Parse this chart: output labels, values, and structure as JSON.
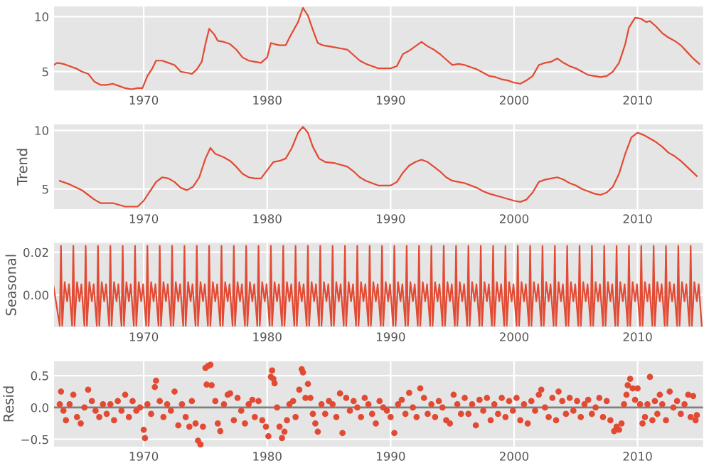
{
  "chart_data": [
    {
      "type": "line",
      "xlim": [
        1962.66,
        2015.38
      ],
      "xticks": [
        1970,
        1980,
        1990,
        2000,
        2010
      ],
      "ylim": [
        3.2,
        11.0
      ],
      "yticks": [
        5,
        10
      ],
      "grid": true,
      "series": [
        {
          "color": "#e24a33",
          "x": [
            1962.7,
            1963.0,
            1963.5,
            1964.0,
            1964.5,
            1965.0,
            1965.5,
            1966.0,
            1966.5,
            1967.0,
            1967.5,
            1968.0,
            1968.5,
            1969.0,
            1969.5,
            1969.9,
            1970.3,
            1970.7,
            1971.0,
            1971.5,
            1972.0,
            1972.5,
            1973.0,
            1973.5,
            1973.9,
            1974.3,
            1974.7,
            1975.0,
            1975.3,
            1975.7,
            1976.0,
            1976.5,
            1977.0,
            1977.5,
            1978.0,
            1978.5,
            1979.0,
            1979.5,
            1980.0,
            1980.3,
            1980.6,
            1981.0,
            1981.5,
            1981.9,
            1982.5,
            1982.9,
            1983.3,
            1983.7,
            1984.1,
            1984.5,
            1985.0,
            1985.5,
            1986.0,
            1986.5,
            1987.0,
            1987.5,
            1988.0,
            1988.5,
            1989.0,
            1989.5,
            1990.0,
            1990.5,
            1991.0,
            1991.5,
            1992.0,
            1992.5,
            1993.0,
            1993.5,
            1994.0,
            1994.5,
            1995.0,
            1995.5,
            1996.0,
            1996.5,
            1997.0,
            1997.5,
            1998.0,
            1998.5,
            1999.0,
            1999.5,
            2000.0,
            2000.5,
            2001.0,
            2001.5,
            2002.0,
            2002.5,
            2003.0,
            2003.5,
            2004.0,
            2004.5,
            2005.0,
            2005.5,
            2006.0,
            2006.5,
            2007.0,
            2007.5,
            2008.0,
            2008.5,
            2009.0,
            2009.3,
            2009.8,
            2010.3,
            2010.7,
            2011.0,
            2011.5,
            2012.0,
            2012.5,
            2013.0,
            2013.5,
            2014.0,
            2014.5,
            2015.0
          ],
          "values": [
            5.6,
            5.8,
            5.7,
            5.5,
            5.3,
            5.0,
            4.8,
            4.1,
            3.8,
            3.8,
            3.9,
            3.7,
            3.5,
            3.4,
            3.5,
            3.5,
            4.6,
            5.3,
            6.0,
            6.0,
            5.8,
            5.6,
            5.0,
            4.9,
            4.8,
            5.2,
            5.9,
            7.5,
            8.9,
            8.4,
            7.8,
            7.7,
            7.5,
            7.0,
            6.3,
            6.0,
            5.9,
            5.8,
            6.3,
            7.6,
            7.5,
            7.4,
            7.4,
            8.3,
            9.5,
            10.8,
            10.1,
            8.8,
            7.6,
            7.4,
            7.3,
            7.2,
            7.1,
            7.0,
            6.5,
            6.0,
            5.7,
            5.5,
            5.3,
            5.3,
            5.3,
            5.5,
            6.6,
            6.9,
            7.3,
            7.7,
            7.3,
            7.0,
            6.6,
            6.1,
            5.6,
            5.7,
            5.6,
            5.4,
            5.2,
            4.9,
            4.6,
            4.5,
            4.3,
            4.2,
            4.0,
            3.9,
            4.2,
            4.6,
            5.6,
            5.8,
            5.9,
            6.2,
            5.8,
            5.5,
            5.3,
            5.0,
            4.7,
            4.6,
            4.5,
            4.6,
            5.0,
            5.8,
            7.5,
            9.0,
            9.9,
            9.8,
            9.5,
            9.6,
            9.1,
            8.5,
            8.1,
            7.8,
            7.4,
            6.8,
            6.2,
            5.7
          ]
        }
      ]
    },
    {
      "type": "line",
      "ylabel": "Trend",
      "xlim": [
        1962.66,
        2015.38
      ],
      "xticks": [
        1970,
        1980,
        1990,
        2000,
        2010
      ],
      "ylim": [
        3.2,
        10.6
      ],
      "yticks": [
        5,
        10
      ],
      "grid": true,
      "series": [
        {
          "color": "#e24a33",
          "x": [
            1963.2,
            1964.0,
            1965.0,
            1965.5,
            1966.0,
            1966.5,
            1967.5,
            1968.5,
            1969.5,
            1970.0,
            1970.5,
            1971.0,
            1971.5,
            1972.0,
            1972.5,
            1973.0,
            1973.5,
            1974.0,
            1974.5,
            1975.0,
            1975.4,
            1975.8,
            1976.5,
            1977.0,
            1977.5,
            1978.0,
            1978.5,
            1979.0,
            1979.5,
            1980.0,
            1980.5,
            1981.0,
            1981.5,
            1982.0,
            1982.5,
            1982.9,
            1983.3,
            1983.7,
            1984.2,
            1984.7,
            1985.5,
            1986.5,
            1987.0,
            1987.5,
            1988.0,
            1988.5,
            1989.0,
            1990.0,
            1990.5,
            1991.0,
            1991.5,
            1992.0,
            1992.5,
            1993.0,
            1993.5,
            1994.0,
            1994.5,
            1995.0,
            1996.0,
            1997.0,
            1997.5,
            1998.0,
            1999.0,
            2000.0,
            2000.5,
            2001.0,
            2001.5,
            2002.0,
            2002.5,
            2003.0,
            2003.5,
            2004.0,
            2004.5,
            2005.0,
            2005.5,
            2006.0,
            2006.5,
            2007.0,
            2007.5,
            2008.0,
            2008.5,
            2009.0,
            2009.5,
            2010.0,
            2010.5,
            2011.0,
            2011.5,
            2012.0,
            2012.5,
            2013.0,
            2013.5,
            2014.0,
            2014.5,
            2014.8
          ],
          "values": [
            5.7,
            5.4,
            4.9,
            4.5,
            4.1,
            3.8,
            3.8,
            3.5,
            3.5,
            4.0,
            4.8,
            5.6,
            6.0,
            5.9,
            5.6,
            5.1,
            4.9,
            5.2,
            6.0,
            7.6,
            8.5,
            8.0,
            7.7,
            7.4,
            6.9,
            6.3,
            6.0,
            5.9,
            5.9,
            6.6,
            7.3,
            7.4,
            7.6,
            8.5,
            9.8,
            10.3,
            9.8,
            8.6,
            7.6,
            7.3,
            7.2,
            6.9,
            6.5,
            6.0,
            5.7,
            5.5,
            5.3,
            5.3,
            5.6,
            6.4,
            7.0,
            7.3,
            7.5,
            7.3,
            6.9,
            6.5,
            6.0,
            5.7,
            5.5,
            5.1,
            4.8,
            4.6,
            4.3,
            4.0,
            3.9,
            4.1,
            4.7,
            5.6,
            5.8,
            5.9,
            6.0,
            5.8,
            5.5,
            5.3,
            5.0,
            4.8,
            4.6,
            4.5,
            4.7,
            5.2,
            6.3,
            8.0,
            9.4,
            9.8,
            9.6,
            9.3,
            9.0,
            8.6,
            8.1,
            7.8,
            7.4,
            6.9,
            6.4,
            6.1
          ]
        }
      ]
    },
    {
      "type": "line",
      "ylabel": "Seasonal",
      "xlim": [
        1962.66,
        2015.38
      ],
      "xticks": [
        1970,
        1980,
        1990,
        2000,
        2010
      ],
      "ylim": [
        -0.0156,
        0.0249
      ],
      "yticks": [
        {
          "value": 0.0,
          "label": "0.00"
        },
        {
          "value": 0.02,
          "label": "0.02"
        }
      ],
      "grid": true,
      "series": [
        {
          "color": "#e24a33",
          "x": [
            1962.7,
            1963.2,
            1963.3,
            1963.4,
            1963.6,
            1963.8,
            1963.95,
            1964.2,
            1964.3,
            1964.4,
            1964.6,
            1964.8,
            1964.95,
            1965.2,
            1965.3,
            1965.4,
            1965.6,
            1965.8,
            1965.95,
            1966.2,
            1966.3,
            1966.4,
            1966.6,
            1966.8,
            1966.95,
            1967.2,
            1967.3,
            1967.4,
            1967.6,
            1967.8,
            1967.95,
            1968.2,
            1968.3,
            1968.4,
            1968.6,
            1968.8,
            1968.95,
            1969.2,
            1969.3,
            1969.4,
            1969.6,
            1969.8,
            1969.95,
            1970.2,
            1970.3,
            1970.4,
            1970.6,
            1970.8,
            1970.95,
            1971.2,
            1971.3,
            1971.4,
            1971.6,
            1971.8,
            1971.95,
            1972.2,
            1972.3,
            1972.4,
            1972.6,
            1972.8,
            1972.95,
            1973.2,
            1973.3,
            1973.4,
            1973.6,
            1973.8,
            1973.95,
            1974.2,
            1974.3,
            1974.4,
            1974.6,
            1974.8,
            1974.95,
            1975.2,
            1975.3,
            1975.4,
            1975.6,
            1975.8,
            1975.95,
            1976.2,
            1976.3,
            1976.4,
            1976.6,
            1976.8,
            1976.95,
            1977.2,
            1977.3,
            1977.4,
            1977.6,
            1977.8,
            1977.95,
            1978.2,
            1978.3,
            1978.4,
            1978.6,
            1978.8,
            1978.95,
            1979.2,
            1979.3,
            1979.4,
            1979.6,
            1979.8,
            1979.95,
            1980.2,
            1980.3,
            1980.4,
            1980.6,
            1980.8,
            1980.95,
            1981.2,
            1981.3,
            1981.4,
            1981.6,
            1981.8,
            1981.95,
            1982.2,
            1982.3,
            1982.4,
            1982.6,
            1982.8,
            1982.95,
            1983.2,
            1983.3,
            1983.4,
            1983.6,
            1983.8,
            1983.95,
            1984.2,
            1984.3,
            1984.4,
            1984.6,
            1984.8,
            1984.95,
            1985.2,
            1985.3,
            1985.4,
            1985.6,
            1985.8,
            1985.95,
            1986.2,
            1986.3,
            1986.4,
            1986.6,
            1986.8,
            1986.95,
            1987.2,
            1987.3,
            1987.4,
            1987.6,
            1987.8,
            1987.95,
            1988.2,
            1988.3,
            1988.4,
            1988.6,
            1988.8,
            1988.95,
            1989.2,
            1989.3,
            1989.4,
            1989.6,
            1989.8,
            1989.95,
            1990.2,
            1990.3,
            1990.4,
            1990.6,
            1990.8,
            1990.95,
            1991.2,
            1991.3,
            1991.4,
            1991.6,
            1991.8,
            1991.95,
            1992.2,
            1992.3,
            1992.4,
            1992.6,
            1992.8,
            1992.95,
            1993.2,
            1993.3,
            1993.4,
            1993.6,
            1993.8,
            1993.95,
            1994.2,
            1994.3,
            1994.4,
            1994.6,
            1994.8,
            1994.95,
            1995.2,
            1995.3,
            1995.4,
            1995.6,
            1995.8,
            1995.95,
            1996.2,
            1996.3,
            1996.4,
            1996.6,
            1996.8,
            1996.95,
            1997.2,
            1997.3,
            1997.4,
            1997.6,
            1997.8,
            1997.95,
            1998.2,
            1998.3,
            1998.4,
            1998.6,
            1998.8,
            1998.95,
            1999.2,
            1999.3,
            1999.4,
            1999.6,
            1999.8,
            1999.95,
            2000.2,
            2000.3,
            2000.4,
            2000.6,
            2000.8,
            2000.95,
            2001.2,
            2001.3,
            2001.4,
            2001.6,
            2001.8,
            2001.95,
            2002.2,
            2002.3,
            2002.4,
            2002.6,
            2002.8,
            2002.95,
            2003.2,
            2003.3,
            2003.4,
            2003.6,
            2003.8,
            2003.95,
            2004.2,
            2004.3,
            2004.4,
            2004.6,
            2004.8,
            2004.95,
            2005.2,
            2005.3,
            2005.4,
            2005.6,
            2005.8,
            2005.95,
            2006.2,
            2006.3,
            2006.4,
            2006.6,
            2006.8,
            2006.95,
            2007.2,
            2007.3,
            2007.4,
            2007.6,
            2007.8,
            2007.95,
            2008.2,
            2008.3,
            2008.4,
            2008.6,
            2008.8,
            2008.95,
            2009.2,
            2009.3,
            2009.4,
            2009.6,
            2009.8,
            2009.95,
            2010.2,
            2010.3,
            2010.4,
            2010.6,
            2010.8,
            2010.95,
            2011.2,
            2011.3,
            2011.4,
            2011.6,
            2011.8,
            2011.95,
            2012.2,
            2012.3,
            2012.4,
            2012.6,
            2012.8,
            2012.95,
            2013.2,
            2013.3,
            2013.4,
            2013.6,
            2013.8,
            2013.95,
            2014.2,
            2014.3,
            2014.4,
            2014.6,
            2014.8,
            2014.95,
            2015.2
          ],
          "values": [
            0.004,
            -0.0145,
            0.023,
            -0.0145,
            0.006,
            -0.003,
            0.005,
            -0.0145,
            0.023,
            -0.0145,
            0.006,
            -0.003,
            0.005,
            -0.0145,
            0.023,
            -0.0145,
            0.006,
            -0.003,
            0.005,
            -0.0145,
            0.023,
            -0.0145,
            0.006,
            -0.003,
            0.005,
            -0.0145,
            0.023,
            -0.0145,
            0.006,
            -0.003,
            0.005,
            -0.0145,
            0.023,
            -0.0145,
            0.006,
            -0.003,
            0.005,
            -0.0145,
            0.023,
            -0.0145,
            0.006,
            -0.003,
            0.005,
            -0.0145,
            0.023,
            -0.0145,
            0.006,
            -0.003,
            0.005,
            -0.0145,
            0.023,
            -0.0145,
            0.006,
            -0.003,
            0.005,
            -0.0145,
            0.023,
            -0.0145,
            0.006,
            -0.003,
            0.005,
            -0.0145,
            0.023,
            -0.0145,
            0.006,
            -0.003,
            0.005,
            -0.0145,
            0.023,
            -0.0145,
            0.006,
            -0.003,
            0.005,
            -0.0145,
            0.023,
            -0.0145,
            0.006,
            -0.003,
            0.005,
            -0.0145,
            0.023,
            -0.0145,
            0.006,
            -0.003,
            0.005,
            -0.0145,
            0.023,
            -0.0145,
            0.006,
            -0.003,
            0.005,
            -0.0145,
            0.023,
            -0.0145,
            0.006,
            -0.003,
            0.005,
            -0.0145,
            0.023,
            -0.0145,
            0.006,
            -0.003,
            0.005,
            -0.0145,
            0.023,
            -0.0145,
            0.006,
            -0.003,
            0.005,
            -0.0145,
            0.023,
            -0.0145,
            0.006,
            -0.003,
            0.005,
            -0.0145,
            0.023,
            -0.0145,
            0.006,
            -0.003,
            0.005,
            -0.0145,
            0.023,
            -0.0145,
            0.006,
            -0.003,
            0.005,
            -0.0145,
            0.023,
            -0.0145,
            0.006,
            -0.003,
            0.005,
            -0.0145,
            0.023,
            -0.0145,
            0.006,
            -0.003,
            0.005,
            -0.0145,
            0.023,
            -0.0145,
            0.006,
            -0.003,
            0.005,
            -0.0145,
            0.023,
            -0.0145,
            0.006,
            -0.003,
            0.005,
            -0.0145,
            0.023,
            -0.0145,
            0.006,
            -0.003,
            0.005,
            -0.0145,
            0.023,
            -0.0145,
            0.006,
            -0.003,
            0.005,
            -0.0145,
            0.023,
            -0.0145,
            0.006,
            -0.003,
            0.005,
            -0.0145,
            0.023,
            -0.0145,
            0.006,
            -0.003,
            0.005,
            -0.0145,
            0.023,
            -0.0145,
            0.006,
            -0.003,
            0.005,
            -0.0145,
            0.023,
            -0.0145,
            0.006,
            -0.003,
            0.005,
            -0.0145,
            0.023,
            -0.0145,
            0.006,
            -0.003,
            0.005,
            -0.0145,
            0.023,
            -0.0145,
            0.006,
            -0.003,
            0.005,
            -0.0145,
            0.023,
            -0.0145,
            0.006,
            -0.003,
            0.005,
            -0.0145,
            0.023,
            -0.0145,
            0.006,
            -0.003,
            0.005,
            -0.0145,
            0.023,
            -0.0145,
            0.006,
            -0.003,
            0.005,
            -0.0145,
            0.023,
            -0.0145,
            0.006,
            -0.003,
            0.005,
            -0.0145,
            0.023,
            -0.0145,
            0.006,
            -0.003,
            0.005,
            -0.0145,
            0.023,
            -0.0145,
            0.006,
            -0.003,
            0.005,
            -0.0145,
            0.023,
            -0.0145,
            0.006,
            -0.003,
            0.005,
            -0.0145,
            0.023,
            -0.0145,
            0.006,
            -0.003,
            0.005,
            -0.0145,
            0.023,
            -0.0145,
            0.006,
            -0.003,
            0.005,
            -0.0145,
            0.023,
            -0.0145,
            0.006,
            -0.003,
            0.005,
            -0.0145,
            0.023,
            -0.0145,
            0.006,
            -0.003,
            0.005,
            -0.0145,
            0.023,
            -0.0145,
            0.006,
            -0.003,
            0.005,
            -0.0145,
            0.023,
            -0.0145,
            0.006,
            -0.003,
            0.005,
            -0.0145,
            0.023,
            -0.0145,
            0.006,
            -0.003,
            0.005,
            -0.0145,
            0.023,
            -0.0145,
            0.006,
            -0.003,
            0.005,
            -0.0145,
            0.023,
            -0.0145,
            0.006,
            -0.003,
            0.005,
            -0.0145,
            0.023,
            -0.0145,
            0.006,
            -0.003,
            0.005,
            -0.0145,
            0.023,
            -0.0145,
            0.006,
            -0.003,
            0.005,
            -0.0145,
            0.023,
            -0.0145,
            0.006,
            -0.003,
            0.005,
            -0.0145
          ]
        }
      ]
    },
    {
      "type": "scatter",
      "ylabel": "Resid",
      "xlim": [
        1962.66,
        2015.38
      ],
      "xticks": [
        1970,
        1980,
        1990,
        2000,
        2010
      ],
      "ylim": [
        -0.63,
        0.74
      ],
      "yticks": [
        {
          "value": -0.5,
          "label": "−0.5"
        },
        {
          "value": 0.0,
          "label": "0.0"
        },
        {
          "value": 0.5,
          "label": "0.5"
        }
      ],
      "grid": true,
      "marker": "circle",
      "ref_lines": [
        {
          "axis": "y",
          "value": 0,
          "color": "#808080"
        }
      ],
      "series": [
        {
          "color": "#e24a33",
          "x": [
            1963.2,
            1963.3,
            1963.5,
            1963.7,
            1964.0,
            1964.3,
            1964.6,
            1964.9,
            1965.2,
            1965.5,
            1965.8,
            1966.1,
            1966.4,
            1966.7,
            1967.0,
            1967.3,
            1967.6,
            1967.9,
            1968.2,
            1968.5,
            1968.8,
            1969.1,
            1969.4,
            1969.7,
            1970.0,
            1970.1,
            1970.3,
            1970.6,
            1970.9,
            1971.0,
            1971.3,
            1971.6,
            1971.9,
            1972.2,
            1972.5,
            1972.8,
            1973.1,
            1973.4,
            1973.7,
            1973.9,
            1974.2,
            1974.4,
            1974.6,
            1974.8,
            1975.0,
            1975.1,
            1975.2,
            1975.4,
            1975.5,
            1975.8,
            1976.0,
            1976.2,
            1976.5,
            1976.8,
            1977.0,
            1977.3,
            1977.6,
            1977.9,
            1978.2,
            1978.5,
            1978.8,
            1979.0,
            1979.3,
            1979.6,
            1979.9,
            1980.1,
            1980.3,
            1980.4,
            1980.5,
            1980.6,
            1980.8,
            1981.0,
            1981.2,
            1981.4,
            1981.6,
            1981.8,
            1982.1,
            1982.3,
            1982.6,
            1982.8,
            1982.9,
            1983.1,
            1983.3,
            1983.5,
            1983.7,
            1983.9,
            1984.1,
            1984.4,
            1984.7,
            1985.0,
            1985.3,
            1985.6,
            1985.9,
            1986.1,
            1986.4,
            1986.7,
            1987.0,
            1987.3,
            1987.6,
            1987.9,
            1988.2,
            1988.5,
            1988.8,
            1989.1,
            1989.4,
            1989.7,
            1990.0,
            1990.3,
            1990.6,
            1990.9,
            1991.2,
            1991.5,
            1991.8,
            1992.1,
            1992.4,
            1992.7,
            1993.0,
            1993.3,
            1993.6,
            1993.9,
            1994.2,
            1994.5,
            1994.8,
            1995.1,
            1995.4,
            1995.7,
            1996.0,
            1996.3,
            1996.6,
            1996.9,
            1997.2,
            1997.5,
            1997.8,
            1998.1,
            1998.4,
            1998.7,
            1999.0,
            1999.3,
            1999.6,
            1999.9,
            2000.2,
            2000.5,
            2000.8,
            2001.1,
            2001.4,
            2001.7,
            2002.0,
            2002.2,
            2002.5,
            2002.8,
            2003.1,
            2003.4,
            2003.6,
            2003.9,
            2004.2,
            2004.5,
            2004.8,
            2005.1,
            2005.4,
            2005.7,
            2006.0,
            2006.3,
            2006.6,
            2006.9,
            2007.2,
            2007.5,
            2007.8,
            2008.1,
            2008.3,
            2008.5,
            2008.7,
            2008.9,
            2009.1,
            2009.2,
            2009.4,
            2009.6,
            2009.8,
            2010.0,
            2010.2,
            2010.4,
            2010.6,
            2010.8,
            2011.0,
            2011.2,
            2011.4,
            2011.6,
            2011.8,
            2012.0,
            2012.3,
            2012.6,
            2012.9,
            2013.2,
            2013.5,
            2013.8,
            2014.1,
            2014.3,
            2014.5,
            2014.7,
            2014.8
          ],
          "values": [
            0.05,
            0.25,
            -0.05,
            -0.2,
            0.05,
            0.2,
            -0.15,
            -0.25,
            0.0,
            0.28,
            0.1,
            -0.05,
            -0.15,
            0.05,
            -0.1,
            0.05,
            -0.2,
            0.1,
            -0.05,
            0.2,
            -0.15,
            0.1,
            -0.05,
            0.0,
            -0.35,
            -0.48,
            0.05,
            -0.1,
            0.32,
            0.42,
            0.1,
            -0.15,
            0.05,
            -0.05,
            0.25,
            -0.28,
            0.05,
            -0.15,
            -0.3,
            0.1,
            -0.25,
            -0.52,
            -0.58,
            -0.3,
            0.62,
            0.36,
            0.65,
            0.67,
            0.35,
            0.1,
            -0.25,
            -0.37,
            0.05,
            0.2,
            0.22,
            -0.2,
            0.15,
            -0.05,
            -0.25,
            0.05,
            0.12,
            -0.15,
            0.1,
            -0.2,
            -0.3,
            -0.45,
            0.48,
            0.58,
            0.45,
            0.38,
            0.0,
            -0.3,
            -0.48,
            -0.38,
            -0.2,
            0.05,
            0.1,
            -0.15,
            0.28,
            0.6,
            0.55,
            0.15,
            0.37,
            0.15,
            -0.1,
            -0.25,
            -0.38,
            0.05,
            -0.1,
            0.1,
            0.05,
            -0.15,
            0.22,
            -0.4,
            0.15,
            -0.05,
            0.1,
            0.0,
            -0.15,
            0.15,
            0.05,
            -0.1,
            -0.25,
            0.1,
            0.0,
            -0.05,
            -0.15,
            -0.4,
            0.05,
            0.12,
            -0.1,
            0.23,
            0.0,
            -0.15,
            0.3,
            0.15,
            -0.1,
            0.05,
            -0.15,
            0.1,
            0.0,
            -0.2,
            -0.25,
            0.2,
            0.05,
            -0.1,
            0.15,
            -0.1,
            0.05,
            -0.28,
            0.12,
            -0.05,
            0.15,
            -0.2,
            0.05,
            -0.1,
            0.15,
            -0.15,
            0.1,
            -0.05,
            0.15,
            -0.2,
            0.05,
            -0.25,
            0.1,
            -0.05,
            0.2,
            0.28,
            0.0,
            -0.15,
            0.15,
            -0.2,
            0.25,
            0.1,
            -0.1,
            0.15,
            -0.05,
            0.1,
            -0.15,
            0.05,
            0.12,
            -0.1,
            0.0,
            0.15,
            -0.15,
            0.1,
            -0.2,
            -0.37,
            -0.3,
            -0.35,
            -0.25,
            0.05,
            0.2,
            0.35,
            0.45,
            0.3,
            0.12,
            0.3,
            0.05,
            -0.25,
            -0.15,
            0.05,
            0.48,
            -0.2,
            0.1,
            -0.1,
            0.2,
            0.05,
            -0.2,
            0.25,
            0.0,
            0.1,
            -0.1,
            0.05,
            0.2,
            -0.15,
            0.18,
            -0.2,
            -0.12
          ]
        }
      ]
    }
  ]
}
